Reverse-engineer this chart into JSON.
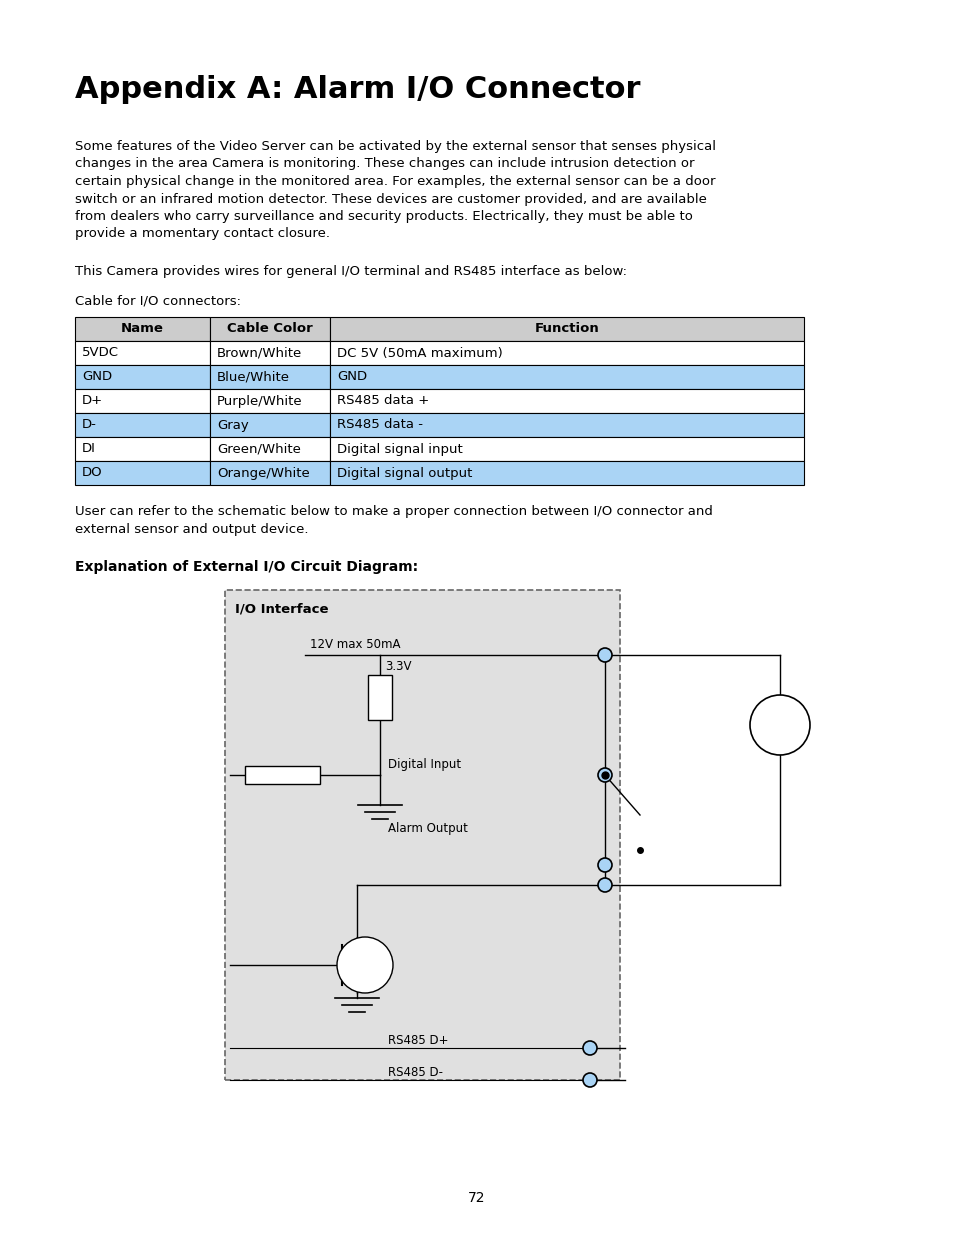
{
  "title": "Appendix A: Alarm I/O Connector",
  "body_text_lines": [
    "Some features of the Video Server can be activated by the external sensor that senses physical",
    "changes in the area Camera is monitoring. These changes can include intrusion detection or",
    "certain physical change in the monitored area. For examples, the external sensor can be a door",
    "switch or an infrared motion detector. These devices are customer provided, and are available",
    "from dealers who carry surveillance and security products. Electrically, they must be able to",
    "provide a momentary contact closure."
  ],
  "cable_intro": "This Camera provides wires for general I/O terminal and RS485 interface as below:",
  "cable_label": "Cable for I/O connectors:",
  "table_headers": [
    "Name",
    "Cable Color",
    "Function"
  ],
  "table_rows": [
    [
      "5VDC",
      "Brown/White",
      "DC 5V (50mA maximum)",
      false
    ],
    [
      "GND",
      "Blue/White",
      "GND",
      true
    ],
    [
      "D+",
      "Purple/White",
      "RS485 data +",
      false
    ],
    [
      "D-",
      "Gray",
      "RS485 data -",
      true
    ],
    [
      "DI",
      "Green/White",
      "Digital signal input",
      false
    ],
    [
      "DO",
      "Orange/White",
      "Digital signal output",
      true
    ]
  ],
  "table_highlight_color": "#aad4f5",
  "table_header_color": "#cccccc",
  "user_text_line1": "User can refer to the schematic below to make a proper connection between I/O connector and",
  "user_text_line2": "external sensor and output device.",
  "diagram_heading": "Explanation of External I/O Circuit Diagram:",
  "page_number": "72",
  "bg_color": "#ffffff",
  "text_color": "#000000",
  "diagram_bg": "#e0e0e0",
  "io_label": "I/O Interface",
  "v12_label": "12V max 50mA",
  "v33_label": "3.3V",
  "di_label": "Digital Input",
  "ao_label": "Alarm Output",
  "rs485p_label": "RS485 D+",
  "rs485m_label": "RS485 D-"
}
